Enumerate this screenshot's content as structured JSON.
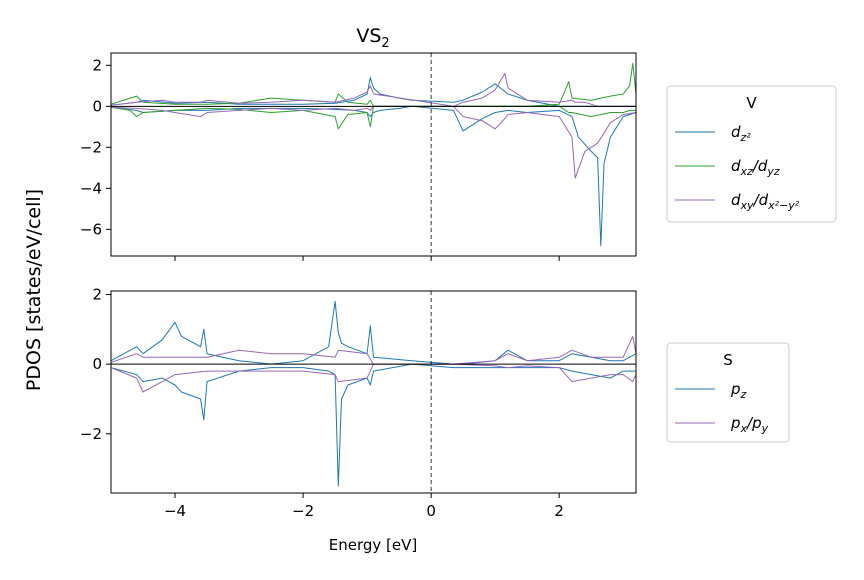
{
  "figure": {
    "title_main": "VS",
    "title_sub": "2",
    "ylabel": "PDOS [states/eV/cell]",
    "xlabel": "Energy [eV]"
  },
  "chart_data": [
    {
      "type": "line",
      "panel": "top",
      "xlim": [
        -5.0,
        3.2
      ],
      "ylim": [
        -7.3,
        2.6
      ],
      "xticks": [
        -4,
        -2,
        0,
        2
      ],
      "yticks": [
        2,
        0,
        -2,
        -4,
        -6
      ],
      "ytick_labels": [
        "2",
        "0",
        "−2",
        "−4",
        "−6"
      ],
      "xtick_labels_visible": false,
      "fermi_level": 0,
      "legend": {
        "title": "V",
        "location": "right",
        "entries": [
          {
            "base": "d",
            "sub": "z²",
            "sup": ""
          },
          {
            "base": "d",
            "sub": "xz",
            "mid": "/d",
            "sub2": "yz"
          },
          {
            "base": "d",
            "sub": "xy",
            "mid": "/d",
            "sub2": "x²−y²"
          }
        ]
      },
      "series": [
        {
          "name": "d_z2",
          "color": "#1f77b4",
          "x": [
            -5.0,
            -4.6,
            -4.5,
            -4.0,
            -3.5,
            -3.0,
            -2.0,
            -1.5,
            -1.2,
            -1.0,
            -0.95,
            -0.9,
            -0.8,
            -0.5,
            -0.3,
            0.35,
            0.5,
            0.8,
            1.0,
            1.2,
            1.5,
            2.0,
            2.2,
            2.3,
            2.5,
            2.6,
            2.65,
            2.7,
            2.8,
            3.0,
            3.2
          ],
          "up": [
            0.05,
            0.2,
            0.3,
            0.15,
            0.2,
            0.1,
            0.1,
            0.15,
            0.3,
            0.6,
            1.4,
            0.9,
            0.6,
            0.4,
            0.3,
            0.2,
            0.3,
            0.7,
            1.1,
            0.6,
            0.3,
            0.0,
            0.0,
            0.0,
            0.0,
            0.0,
            0.0,
            0.0,
            0.0,
            0.0,
            0.0
          ],
          "down": [
            -0.05,
            -0.2,
            -0.3,
            -0.2,
            -0.2,
            -0.1,
            -0.1,
            -0.15,
            -0.2,
            -0.3,
            -0.5,
            -0.3,
            -0.2,
            -0.1,
            0.0,
            -0.2,
            -1.2,
            -0.6,
            -0.3,
            -0.2,
            -0.3,
            -0.2,
            -0.5,
            -1.5,
            -2.2,
            -2.5,
            -6.8,
            -2.8,
            -1.5,
            -0.5,
            -0.3
          ]
        },
        {
          "name": "d_xz/d_yz",
          "color": "#2ca02c",
          "x": [
            -5.0,
            -4.7,
            -4.6,
            -4.5,
            -4.0,
            -3.5,
            -3.0,
            -2.5,
            -2.0,
            -1.5,
            -1.45,
            -1.3,
            -1.0,
            -0.95,
            -0.9,
            0.35,
            0.5,
            1.0,
            1.5,
            2.0,
            2.15,
            2.2,
            2.5,
            2.8,
            3.0,
            3.1,
            3.15,
            3.2
          ],
          "up": [
            0.1,
            0.4,
            0.5,
            0.2,
            0.1,
            0.1,
            0.15,
            0.4,
            0.3,
            0.2,
            0.6,
            0.2,
            0.1,
            0.3,
            0.0,
            0.0,
            0.0,
            0.0,
            0.0,
            0.1,
            1.2,
            0.4,
            0.3,
            0.5,
            0.6,
            1.0,
            2.1,
            0.6
          ],
          "down": [
            -0.05,
            -0.2,
            -0.5,
            -0.3,
            -0.2,
            -0.1,
            -0.15,
            -0.3,
            -0.2,
            -0.5,
            -1.1,
            -0.4,
            -0.3,
            -1.0,
            0.0,
            0.0,
            0.0,
            0.0,
            0.0,
            0.0,
            -0.3,
            -0.3,
            -0.5,
            -0.3,
            -0.3,
            -0.2,
            -0.2,
            -0.2
          ]
        },
        {
          "name": "d_xy/d_x2-y2",
          "color": "#9467bd",
          "x": [
            -5.0,
            -4.6,
            -4.2,
            -4.0,
            -3.6,
            -3.5,
            -3.0,
            -2.5,
            -2.0,
            -1.5,
            -1.2,
            -1.0,
            -0.95,
            -0.9,
            0.35,
            0.5,
            0.8,
            1.0,
            1.15,
            1.2,
            1.5,
            2.0,
            2.2,
            2.25,
            2.4,
            2.6,
            2.8,
            3.0,
            3.2
          ],
          "up": [
            0.05,
            0.2,
            0.3,
            0.2,
            0.2,
            0.3,
            0.15,
            0.2,
            0.3,
            0.2,
            0.4,
            0.7,
            1.0,
            0.6,
            0.0,
            0.2,
            0.4,
            0.8,
            1.6,
            0.9,
            0.3,
            0.2,
            0.3,
            0.2,
            0.2,
            0.0,
            0.0,
            0.0,
            0.0
          ],
          "down": [
            -0.05,
            -0.1,
            -0.2,
            -0.3,
            -0.5,
            -0.3,
            -0.2,
            -0.1,
            -0.2,
            -0.1,
            -0.2,
            -0.1,
            -0.2,
            0.0,
            0.0,
            -0.5,
            -0.7,
            -1.1,
            -0.6,
            -0.4,
            -0.3,
            -0.5,
            -1.5,
            -3.5,
            -2.2,
            -1.8,
            -0.8,
            -0.4,
            -0.3
          ]
        }
      ]
    },
    {
      "type": "line",
      "panel": "bottom",
      "xlim": [
        -5.0,
        3.2
      ],
      "ylim": [
        -3.7,
        2.1
      ],
      "xticks": [
        -4,
        -2,
        0,
        2
      ],
      "xtick_labels": [
        "−4",
        "−2",
        "0",
        "2"
      ],
      "yticks": [
        2,
        0,
        -2
      ],
      "ytick_labels": [
        "2",
        "0",
        "−2"
      ],
      "fermi_level": 0,
      "legend": {
        "title": "S",
        "location": "right",
        "entries": [
          {
            "base": "p",
            "sub": "z"
          },
          {
            "base": "p",
            "sub": "x",
            "mid": "/p",
            "sub2": "y"
          }
        ]
      },
      "series": [
        {
          "name": "p_z",
          "color": "#1f77b4",
          "x": [
            -5.0,
            -4.6,
            -4.5,
            -4.2,
            -4.0,
            -3.9,
            -3.6,
            -3.55,
            -3.5,
            -3.0,
            -2.5,
            -2.0,
            -1.6,
            -1.5,
            -1.45,
            -1.4,
            -1.3,
            -1.0,
            -0.95,
            -0.9,
            -0.3,
            0.35,
            0.5,
            1.0,
            1.2,
            1.5,
            2.0,
            2.2,
            2.5,
            2.8,
            3.0,
            3.2
          ],
          "up": [
            0.1,
            0.5,
            0.3,
            0.7,
            1.2,
            0.8,
            0.5,
            1.0,
            0.3,
            0.1,
            0.0,
            0.1,
            0.5,
            1.8,
            0.9,
            0.6,
            0.5,
            0.3,
            1.1,
            0.2,
            0.1,
            0.0,
            0.0,
            0.1,
            0.4,
            0.1,
            0.1,
            0.3,
            0.2,
            0.1,
            0.1,
            0.3
          ],
          "down": [
            -0.1,
            -0.3,
            -0.5,
            -0.4,
            -0.6,
            -0.8,
            -1.0,
            -1.6,
            -0.5,
            -0.2,
            -0.1,
            -0.1,
            -0.2,
            -0.3,
            -3.5,
            -1.0,
            -0.6,
            -0.4,
            -0.6,
            -0.2,
            0.0,
            -0.1,
            -0.1,
            -0.1,
            -0.1,
            -0.1,
            -0.1,
            -0.2,
            -0.3,
            -0.4,
            -0.2,
            -0.2
          ]
        },
        {
          "name": "p_x/p_y",
          "color": "#9467bd",
          "x": [
            -5.0,
            -4.6,
            -4.5,
            -4.0,
            -3.5,
            -3.0,
            -2.5,
            -2.0,
            -1.5,
            -1.45,
            -1.0,
            -0.9,
            0.35,
            1.0,
            1.2,
            1.5,
            2.0,
            2.2,
            2.5,
            2.8,
            3.0,
            3.15,
            3.2
          ],
          "up": [
            0.05,
            0.3,
            0.2,
            0.2,
            0.2,
            0.4,
            0.3,
            0.3,
            0.2,
            0.4,
            0.3,
            0.0,
            0.0,
            0.1,
            0.3,
            0.1,
            0.2,
            0.4,
            0.2,
            0.2,
            0.2,
            0.8,
            0.3
          ],
          "down": [
            -0.1,
            -0.4,
            -0.8,
            -0.3,
            -0.2,
            -0.2,
            -0.2,
            -0.2,
            -0.3,
            -0.5,
            -0.4,
            0.0,
            0.0,
            -0.05,
            -0.1,
            -0.05,
            -0.1,
            -0.5,
            -0.4,
            -0.3,
            -0.3,
            -0.5,
            -0.3
          ]
        }
      ]
    }
  ]
}
